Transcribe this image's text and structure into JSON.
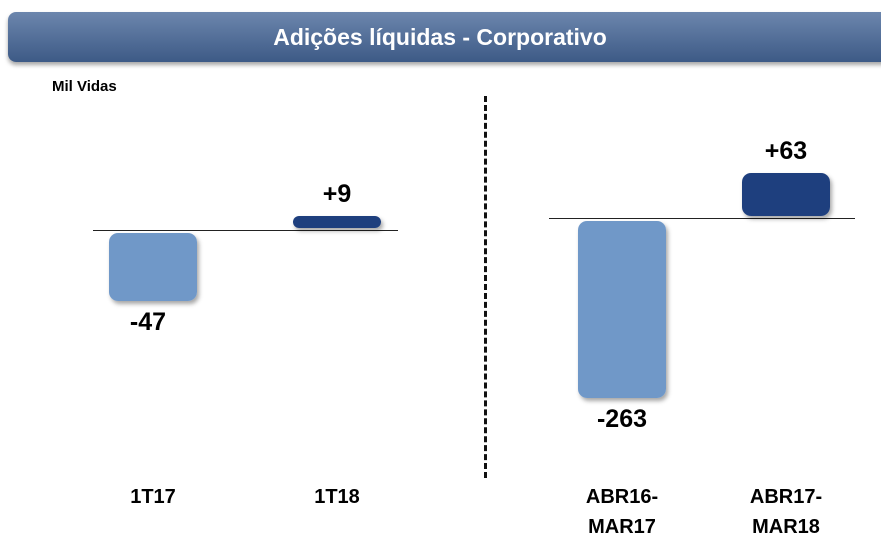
{
  "header": {
    "title": "Adições líquidas - Corporativo"
  },
  "unit_label": "Mil Vidas",
  "chart_data": [
    {
      "type": "bar",
      "categories": [
        "1T17",
        "1T18"
      ],
      "values": [
        -47,
        9
      ],
      "value_labels": [
        "-47",
        "+9"
      ],
      "colors": [
        "#7098c8",
        "#1d3c78"
      ],
      "ylim": [
        -160,
        70
      ]
    },
    {
      "type": "bar",
      "categories": [
        "ABR16-MAR17",
        "ABR17-MAR18"
      ],
      "values": [
        -263,
        63
      ],
      "value_labels": [
        "-263",
        "+63"
      ],
      "colors": [
        "#7098c8",
        "#1d3c78"
      ],
      "ylim": [
        -360,
        130
      ]
    }
  ]
}
